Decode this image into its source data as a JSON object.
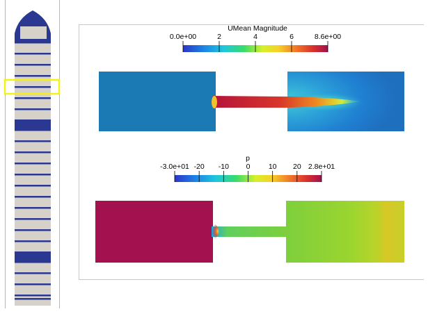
{
  "colors": {
    "thumb_dark": "#2a3891",
    "thumb_light": "#d6d2c9",
    "highlight": "#f5ef1a",
    "page_border": "#b7b7b7"
  },
  "thumbnails": {
    "count": 24,
    "selected_index": 6
  },
  "velocity_plot": {
    "legend_title": "UMean Magnitude",
    "tick_labels": [
      "0.0e+00",
      "2",
      "4",
      "6",
      "8.6e+00"
    ],
    "colormap": "jet-rainbow"
  },
  "pressure_plot": {
    "legend_title": "p",
    "tick_labels": [
      "-3.0e+01",
      "-20",
      "-10",
      "0",
      "10",
      "20",
      "2.8e+01"
    ],
    "colormap": "jet-rainbow"
  }
}
